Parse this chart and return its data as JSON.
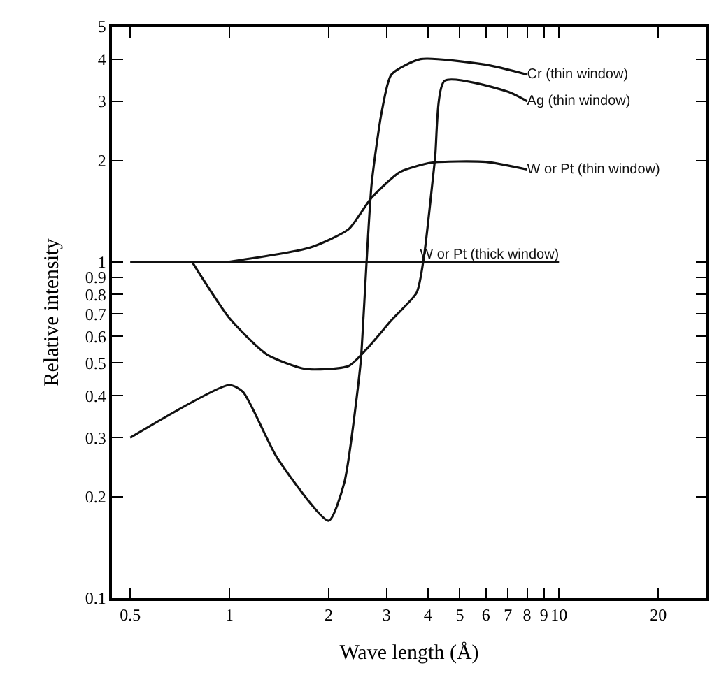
{
  "chart_data": {
    "type": "line",
    "xlabel": "Wave length (Å)",
    "ylabel": "Relative intensity",
    "log": "xy",
    "legend": false,
    "marker": "none",
    "xlim": [
      0.44,
      28
    ],
    "xticks": [
      0.5,
      1,
      2,
      3,
      4,
      5,
      6,
      7,
      8,
      9,
      10,
      20
    ],
    "ylim": [
      0.1,
      5
    ],
    "yticks": [
      0.1,
      0.2,
      0.3,
      0.4,
      0.5,
      0.6,
      0.7,
      0.8,
      0.9,
      1,
      2,
      3,
      4,
      5
    ],
    "series": [
      {
        "name": "Cr (thin window)",
        "color": "#111111",
        "x": [
          0.5,
          1,
          1.1,
          1.4,
          2,
          2.23,
          2.5,
          2.55,
          2.7,
          2.9,
          3.1,
          3.8,
          6,
          8
        ],
        "values": [
          0.3,
          0.43,
          0.41,
          0.26,
          0.17,
          0.22,
          0.5,
          0.68,
          1.7,
          2.8,
          3.6,
          4.0,
          3.85,
          3.6
        ]
      },
      {
        "name": "Ag (thin window)",
        "color": "#111111",
        "x": [
          0.77,
          1,
          1.3,
          1.7,
          2.3,
          2.65,
          3.1,
          3.7,
          3.9,
          4.2,
          4.5,
          7,
          8
        ],
        "values": [
          1,
          0.68,
          0.53,
          0.48,
          0.49,
          0.56,
          0.67,
          0.81,
          1.05,
          2,
          3.45,
          3.2,
          3.0
        ]
      },
      {
        "name": "W or Pt (thin window)",
        "color": "#111111",
        "x": [
          1,
          1.75,
          2.3,
          2.7,
          3.3,
          4.1,
          6,
          8
        ],
        "values": [
          1,
          1.1,
          1.25,
          1.55,
          1.85,
          1.97,
          1.98,
          1.88
        ]
      },
      {
        "name": "W or Pt (thick window)",
        "color": "#111111",
        "x": [
          0.5,
          10
        ],
        "values": [
          1,
          1
        ]
      }
    ]
  }
}
